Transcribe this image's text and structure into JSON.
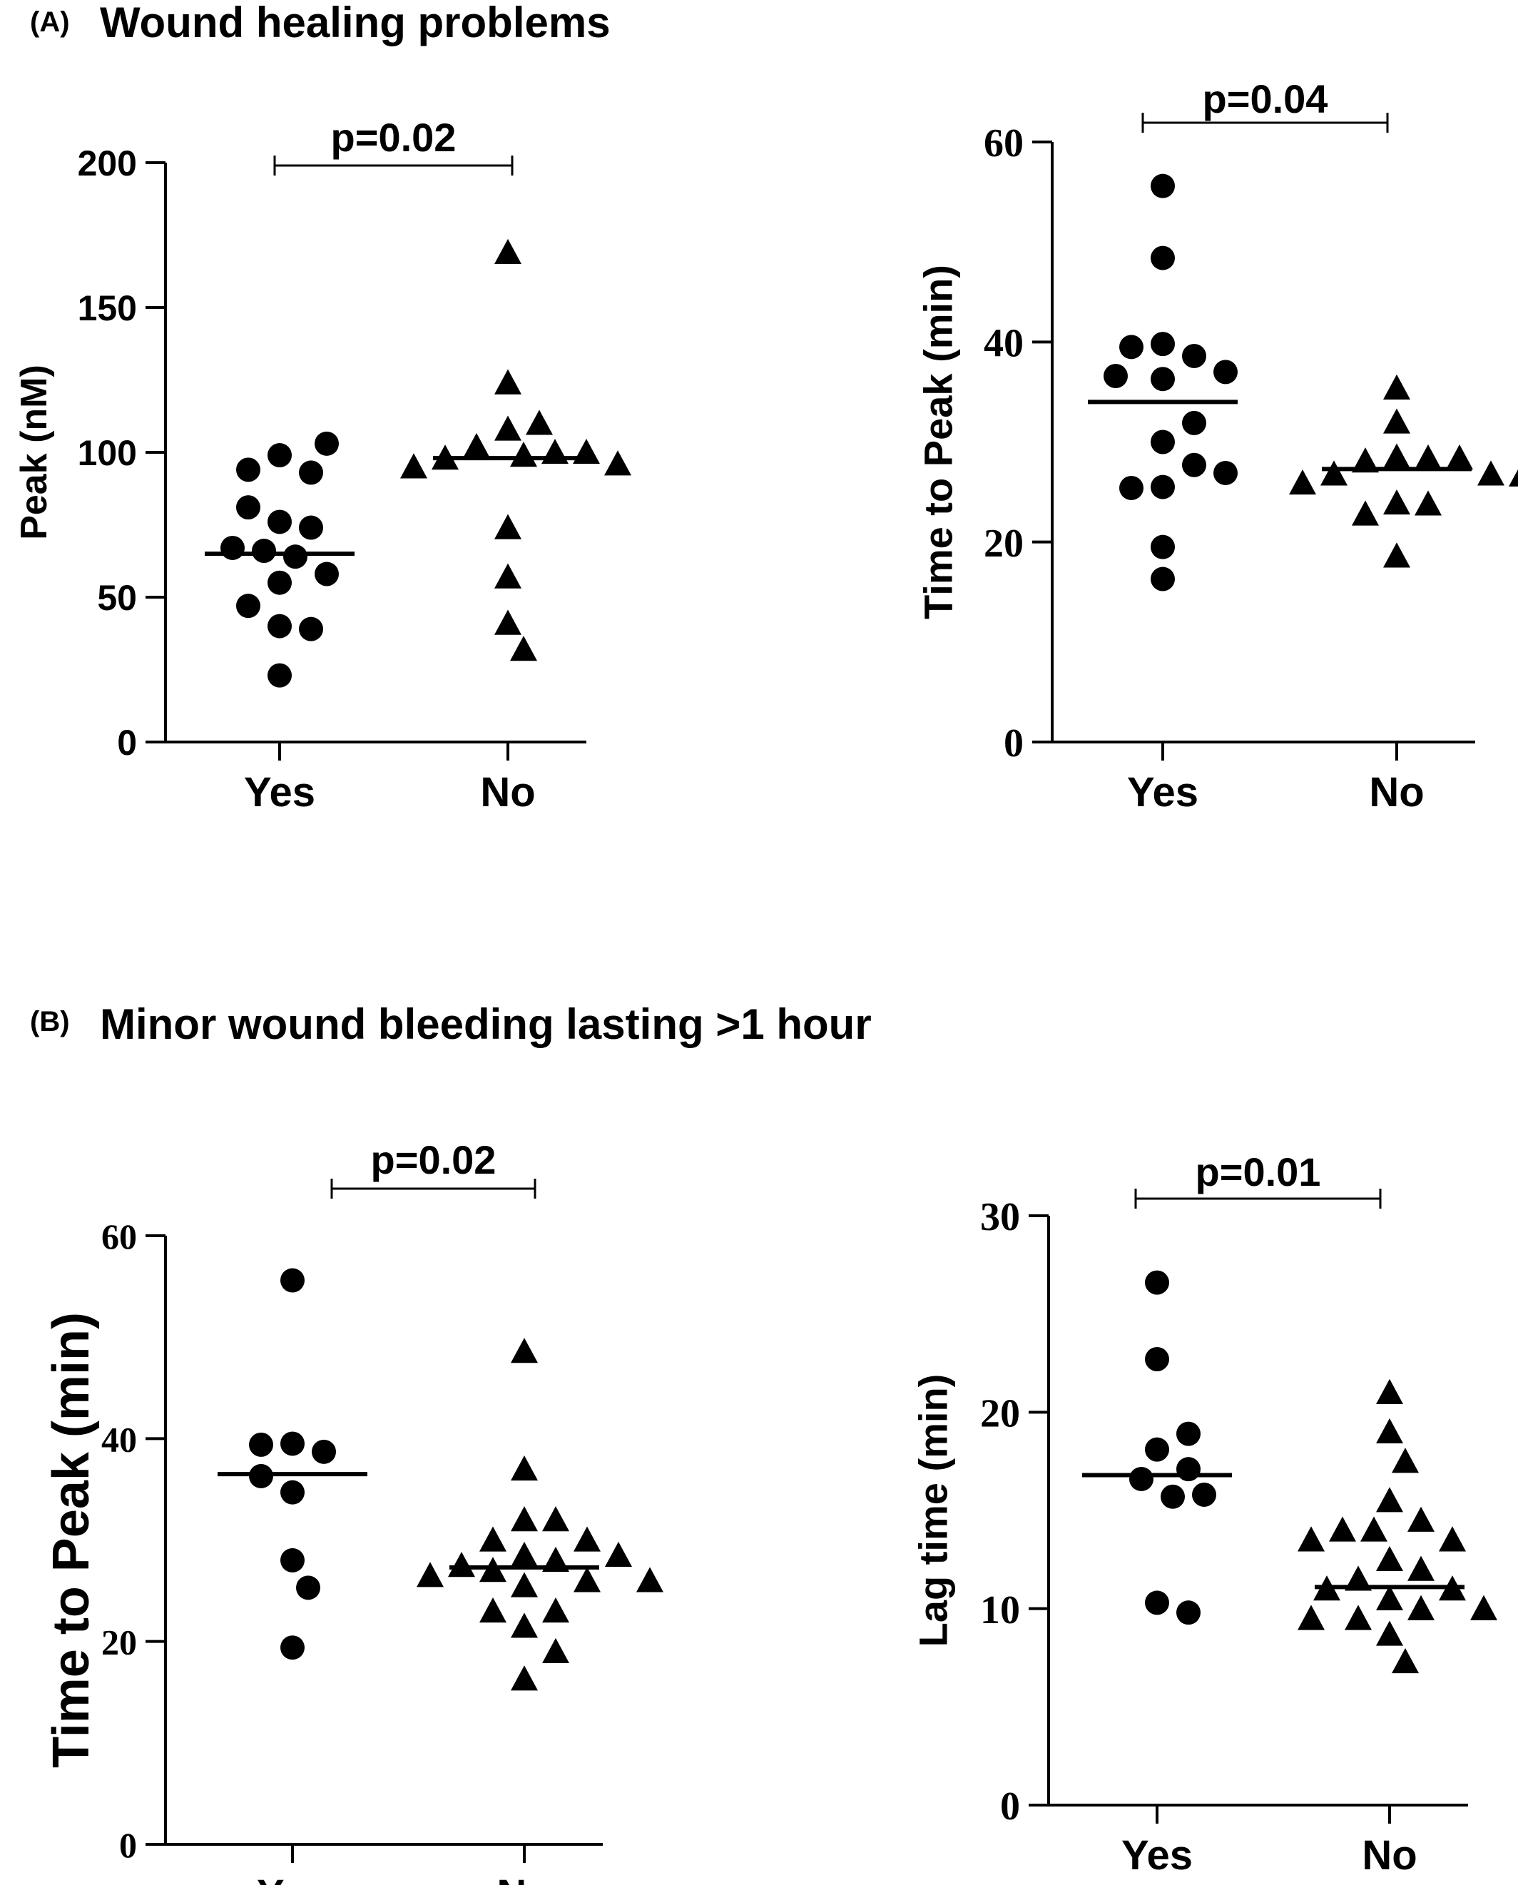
{
  "panels": [
    {
      "letter": "(A)",
      "title": "Wound healing problems"
    },
    {
      "letter": "(B)",
      "title": "Minor wound bleeding lasting >1 hour"
    }
  ],
  "chart_data": [
    {
      "type": "scatter",
      "panel": "(A)",
      "ylabel": "Peak (nM)",
      "ylim": [
        0,
        200
      ],
      "yticks": [
        "0",
        "50",
        "100",
        "150",
        "200"
      ],
      "categories": [
        "Yes",
        "No"
      ],
      "groups": [
        {
          "label": "Yes",
          "marker": "circle",
          "median": 65,
          "values": [
            99,
            93,
            94,
            103,
            76,
            74,
            81,
            66,
            67,
            64,
            58,
            55,
            40,
            39,
            47,
            23
          ]
        },
        {
          "label": "No",
          "marker": "triangle",
          "median": 98,
          "values": [
            169,
            124,
            108,
            110,
            99,
            102,
            100,
            98,
            100,
            95,
            96,
            74,
            57,
            41,
            32
          ]
        }
      ],
      "comparison": {
        "label": "p=0.02",
        "from": "Yes",
        "to": "No"
      }
    },
    {
      "type": "scatter",
      "panel": "(A)",
      "ylabel": "Time to Peak (min)",
      "ylim": [
        0,
        60
      ],
      "yticks": [
        "0",
        "20",
        "40",
        "60"
      ],
      "categories": [
        "Yes",
        "No"
      ],
      "groups": [
        {
          "label": "Yes",
          "marker": "circle",
          "median": 34,
          "values": [
            55.6,
            48.4,
            39.8,
            38.6,
            39.5,
            37,
            36.3,
            36.6,
            30,
            31.9,
            27.7,
            25.5,
            25.4,
            26.9,
            19.5,
            16.3
          ]
        },
        {
          "label": "No",
          "marker": "triangle",
          "median": 27.3,
          "values": [
            35.4,
            32,
            28.5,
            28.4,
            28.1,
            28.4,
            26.8,
            26.8,
            25.9,
            26.7,
            23.9,
            23.8,
            22.8,
            18.6
          ]
        }
      ],
      "comparison": {
        "label": "p=0.04",
        "from": "Yes",
        "to": "No"
      }
    },
    {
      "type": "scatter",
      "panel": "(B)",
      "ylabel": "Time to Peak (min)",
      "ylim": [
        0,
        60
      ],
      "yticks": [
        "0",
        "20",
        "40",
        "60"
      ],
      "categories": [
        "Yes",
        "No"
      ],
      "groups": [
        {
          "label": "Yes",
          "marker": "circle",
          "median": 36.5,
          "values": [
            55.6,
            39.5,
            38.7,
            39.4,
            34.7,
            36.3,
            28,
            25.3,
            19.4
          ]
        },
        {
          "label": "No",
          "marker": "triangle",
          "median": 27.3,
          "values": [
            48.6,
            37,
            32,
            32,
            30,
            30,
            28.5,
            28,
            27.5,
            28.5,
            27,
            26,
            26.5,
            26,
            25.5,
            23,
            21.5,
            23,
            19,
            16.3
          ]
        }
      ],
      "comparison": {
        "label": "p=0.02",
        "from": "Yes",
        "to": "No"
      }
    },
    {
      "type": "scatter",
      "panel": "(B)",
      "ylabel": "Lag time (min)",
      "ylim": [
        0,
        30
      ],
      "yticks": [
        "0",
        "10",
        "20",
        "30"
      ],
      "categories": [
        "Yes",
        "No"
      ],
      "groups": [
        {
          "label": "Yes",
          "marker": "circle",
          "median": 16.8,
          "values": [
            26.6,
            22.7,
            18.1,
            18.9,
            17.1,
            16.6,
            15.7,
            15.8,
            10.3,
            9.8
          ]
        },
        {
          "label": "No",
          "marker": "triangle",
          "median": 11.1,
          "values": [
            21,
            19,
            17.5,
            15.5,
            14.5,
            14,
            14,
            13.5,
            13.5,
            12.5,
            12,
            11.5,
            11,
            11,
            10.5,
            10,
            10,
            9.5,
            9.5,
            8.7,
            7.3
          ]
        }
      ],
      "comparison": {
        "label": "p=0.01",
        "from": "Yes",
        "to": "No"
      }
    }
  ]
}
